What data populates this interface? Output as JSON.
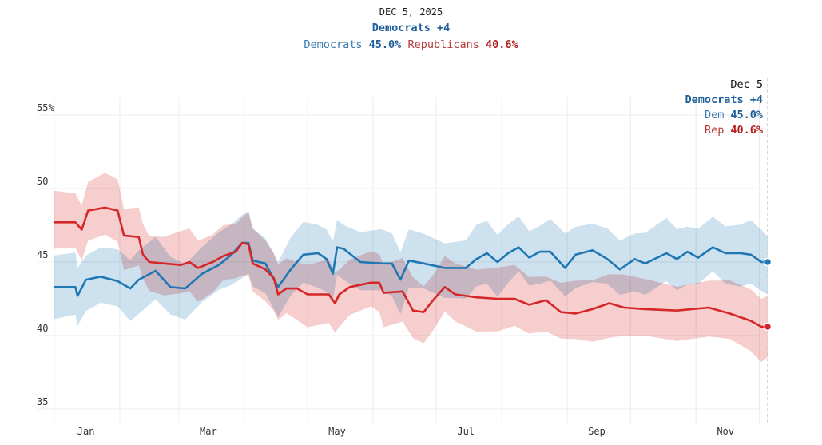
{
  "header": {
    "date": "DEC 5, 2025",
    "lead": "Democrats +4",
    "dem_label": "Democrats",
    "dem_value": "45.0%",
    "rep_label": "Republicans",
    "rep_value": "40.6%"
  },
  "annotation": {
    "date": "Dec 5",
    "lead": "Democrats +4",
    "dem_label": "Dem",
    "dem_value": "45.0%",
    "rep_label": "Rep",
    "rep_value": "40.6%"
  },
  "colors": {
    "dem": "#1f77b4",
    "dem_band": "#c6dcec",
    "rep": "#d62728",
    "rep_band": "#f4c5c6",
    "grid": "#ececec"
  },
  "chart_data": {
    "type": "line",
    "title": "Democrats +4",
    "subtitle": "DEC 5, 2025",
    "xlabel": "",
    "ylabel": "",
    "x_unit": "day of year 2025 (0 = Jan 1)",
    "xlim": [
      0,
      338
    ],
    "ylim": [
      34,
      56
    ],
    "y_ticks": [
      {
        "value": 55,
        "label": "55%"
      },
      {
        "value": 50,
        "label": "50"
      },
      {
        "value": 45,
        "label": "45"
      },
      {
        "value": 40,
        "label": "40"
      },
      {
        "value": 35,
        "label": "35"
      }
    ],
    "x_ticks": [
      {
        "day": 15,
        "label": "Jan"
      },
      {
        "day": 73,
        "label": "Mar"
      },
      {
        "day": 134,
        "label": "May"
      },
      {
        "day": 195,
        "label": "Jul"
      },
      {
        "day": 257,
        "label": "Sep"
      },
      {
        "day": 318,
        "label": "Nov"
      }
    ],
    "month_gridlines": [
      0,
      31,
      59,
      90,
      120,
      151,
      181,
      212,
      243,
      273,
      304,
      334
    ],
    "grid": true,
    "legend": "top-center",
    "series": [
      {
        "name": "Democrats",
        "band_width": 2.0,
        "points": [
          [
            0,
            43.3
          ],
          [
            10,
            43.3
          ],
          [
            11,
            42.7
          ],
          [
            15,
            43.8
          ],
          [
            22,
            44.0
          ],
          [
            30,
            43.7
          ],
          [
            36,
            43.2
          ],
          [
            40,
            43.8
          ],
          [
            48,
            44.4
          ],
          [
            55,
            43.3
          ],
          [
            62,
            43.2
          ],
          [
            70,
            44.2
          ],
          [
            78,
            44.8
          ],
          [
            84,
            45.5
          ],
          [
            89,
            46.3
          ],
          [
            92,
            46.3
          ],
          [
            94,
            45.1
          ],
          [
            100,
            44.9
          ],
          [
            106,
            43.3
          ],
          [
            112,
            44.5
          ],
          [
            118,
            45.5
          ],
          [
            125,
            45.6
          ],
          [
            129,
            45.2
          ],
          [
            132,
            44.2
          ],
          [
            134,
            46.0
          ],
          [
            137,
            45.9
          ],
          [
            145,
            45.0
          ],
          [
            155,
            44.9
          ],
          [
            160,
            44.9
          ],
          [
            164,
            43.8
          ],
          [
            168,
            45.1
          ],
          [
            175,
            44.9
          ],
          [
            185,
            44.6
          ],
          [
            195,
            44.6
          ],
          [
            200,
            45.2
          ],
          [
            205,
            45.6
          ],
          [
            210,
            45.0
          ],
          [
            215,
            45.6
          ],
          [
            220,
            46.0
          ],
          [
            225,
            45.3
          ],
          [
            230,
            45.7
          ],
          [
            235,
            45.7
          ],
          [
            242,
            44.6
          ],
          [
            247,
            45.5
          ],
          [
            255,
            45.8
          ],
          [
            262,
            45.2
          ],
          [
            268,
            44.5
          ],
          [
            275,
            45.2
          ],
          [
            280,
            44.9
          ],
          [
            290,
            45.6
          ],
          [
            295,
            45.2
          ],
          [
            300,
            45.7
          ],
          [
            305,
            45.3
          ],
          [
            312,
            46.0
          ],
          [
            318,
            45.6
          ],
          [
            325,
            45.6
          ],
          [
            330,
            45.5
          ],
          [
            335,
            45.0
          ],
          [
            338,
            45.0
          ]
        ]
      },
      {
        "name": "Republicans",
        "band_width": 2.0,
        "points": [
          [
            0,
            47.7
          ],
          [
            10,
            47.7
          ],
          [
            13,
            47.2
          ],
          [
            16,
            48.5
          ],
          [
            24,
            48.7
          ],
          [
            30,
            48.5
          ],
          [
            33,
            46.8
          ],
          [
            40,
            46.7
          ],
          [
            42,
            45.5
          ],
          [
            45,
            45.0
          ],
          [
            52,
            44.9
          ],
          [
            60,
            44.8
          ],
          [
            64,
            45.0
          ],
          [
            68,
            44.6
          ],
          [
            75,
            45.0
          ],
          [
            80,
            45.4
          ],
          [
            86,
            45.7
          ],
          [
            89,
            46.3
          ],
          [
            92,
            46.2
          ],
          [
            94,
            44.9
          ],
          [
            100,
            44.5
          ],
          [
            104,
            43.9
          ],
          [
            106,
            42.8
          ],
          [
            110,
            43.2
          ],
          [
            115,
            43.2
          ],
          [
            120,
            42.8
          ],
          [
            130,
            42.8
          ],
          [
            133,
            42.2
          ],
          [
            135,
            42.8
          ],
          [
            140,
            43.3
          ],
          [
            150,
            43.6
          ],
          [
            154,
            43.6
          ],
          [
            156,
            42.9
          ],
          [
            165,
            43.0
          ],
          [
            170,
            41.7
          ],
          [
            175,
            41.6
          ],
          [
            180,
            42.5
          ],
          [
            185,
            43.3
          ],
          [
            190,
            42.8
          ],
          [
            200,
            42.6
          ],
          [
            210,
            42.5
          ],
          [
            218,
            42.5
          ],
          [
            225,
            42.1
          ],
          [
            233,
            42.4
          ],
          [
            240,
            41.6
          ],
          [
            247,
            41.5
          ],
          [
            255,
            41.8
          ],
          [
            263,
            42.2
          ],
          [
            270,
            41.9
          ],
          [
            280,
            41.8
          ],
          [
            295,
            41.7
          ],
          [
            310,
            41.9
          ],
          [
            320,
            41.5
          ],
          [
            330,
            41.0
          ],
          [
            335,
            40.6
          ],
          [
            338,
            40.6
          ]
        ]
      }
    ],
    "final": {
      "date": "Dec 5",
      "Democrats": 45.0,
      "Republicans": 40.6,
      "margin": "Democrats +4"
    }
  }
}
